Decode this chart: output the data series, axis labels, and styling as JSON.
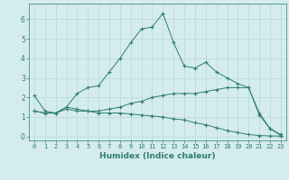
{
  "xlabel": "Humidex (Indice chaleur)",
  "x_values": [
    0,
    1,
    2,
    3,
    4,
    5,
    6,
    7,
    8,
    9,
    10,
    11,
    12,
    13,
    14,
    15,
    16,
    17,
    18,
    19,
    20,
    21,
    22,
    23
  ],
  "line1": [
    2.1,
    1.3,
    1.2,
    1.5,
    2.2,
    2.5,
    2.6,
    3.3,
    4.0,
    4.8,
    5.5,
    5.6,
    6.3,
    4.8,
    3.6,
    3.5,
    3.8,
    3.3,
    3.0,
    2.7,
    2.5,
    1.2,
    0.4,
    0.1
  ],
  "line2": [
    1.3,
    1.2,
    1.2,
    1.5,
    1.4,
    1.3,
    1.3,
    1.4,
    1.5,
    1.7,
    1.8,
    2.0,
    2.1,
    2.2,
    2.2,
    2.2,
    2.3,
    2.4,
    2.5,
    2.5,
    2.5,
    1.1,
    0.4,
    0.05
  ],
  "line3": [
    1.3,
    1.2,
    1.2,
    1.4,
    1.3,
    1.3,
    1.2,
    1.2,
    1.2,
    1.15,
    1.1,
    1.05,
    1.0,
    0.9,
    0.85,
    0.7,
    0.6,
    0.45,
    0.3,
    0.2,
    0.1,
    0.05,
    0.03,
    0.02
  ],
  "line_color": "#2d7d72",
  "bg_color": "#d5ecec",
  "grid_color": "#b8d8d8",
  "ylim": [
    -0.2,
    6.8
  ],
  "xlim": [
    -0.5,
    23.5
  ],
  "yticks": [
    0,
    1,
    2,
    3,
    4,
    5,
    6
  ],
  "xticks": [
    0,
    1,
    2,
    3,
    4,
    5,
    6,
    7,
    8,
    9,
    10,
    11,
    12,
    13,
    14,
    15,
    16,
    17,
    18,
    19,
    20,
    21,
    22,
    23
  ],
  "tick_fontsize": 5.0,
  "label_fontsize": 6.5
}
